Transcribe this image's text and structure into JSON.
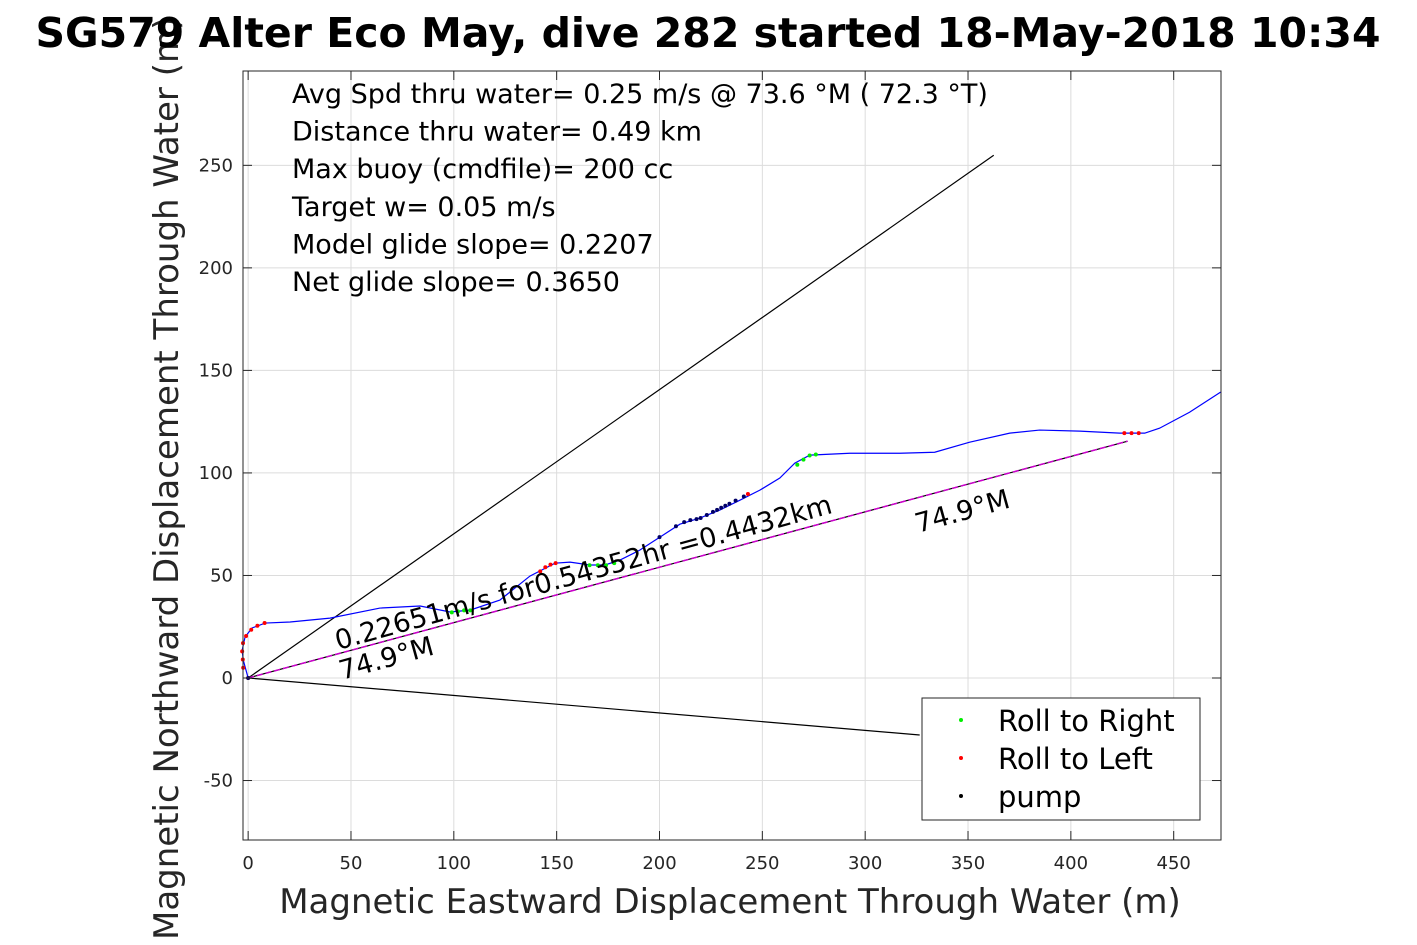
{
  "chart_data": {
    "type": "line",
    "title": "SG579 Alter Eco May, dive 282 started 18-May-2018 10:34",
    "xlabel": "Magnetic Eastward Displacement Through Water (m)",
    "ylabel": "Magnetic Northward Displacement Through Water (m)",
    "xlim": [
      -2.5,
      473
    ],
    "ylim": [
      -79,
      296
    ],
    "xticks": [
      0,
      50,
      100,
      150,
      200,
      250,
      300,
      350,
      400,
      450
    ],
    "yticks": [
      -50,
      0,
      50,
      100,
      150,
      200,
      250
    ],
    "grid": true,
    "info_lines": [
      "Avg Spd thru water=  0.25 m/s @  73.6 °M ( 72.3 °T)",
      "Distance thru water=  0.49 km",
      "Max buoy (cmdfile)= 200 cc",
      "Target w= 0.05 m/s",
      "Model glide slope= 0.2207",
      "Net glide slope= 0.3650"
    ],
    "annotations": {
      "speed_text": "0.22651m/s for0.54352hr =0.4432km",
      "heading_start": "74.9°M",
      "heading_end": "74.9°M"
    },
    "track": {
      "color": "#0000ff",
      "x": [
        0,
        -2.4,
        -2.9,
        -1.5,
        1.9,
        8.3,
        20.4,
        39.8,
        64.1,
        83.6,
        98.2,
        107.9,
        122.4,
        137,
        149.2,
        156.5,
        166.2,
        173.5,
        180.8,
        190.5,
        200.2,
        209.9,
        219.6,
        229.3,
        239.1,
        248.8,
        258.5,
        265.8,
        273.1,
        292.5,
        316.8,
        333.8,
        350.8,
        370.3,
        384.8,
        404.3,
        423.7,
        435.9,
        443.1,
        457.7,
        472.8
      ],
      "y": [
        0,
        8.8,
        13.6,
        20,
        24.4,
        26.8,
        27.3,
        29.2,
        34.1,
        35.1,
        32.2,
        33.1,
        38,
        49.7,
        56,
        56.5,
        55.1,
        55.1,
        57.5,
        62.4,
        68.7,
        75,
        78,
        81.9,
        86.7,
        91.6,
        97.5,
        104.8,
        108.7,
        109.6,
        109.6,
        110.1,
        115,
        119.4,
        120.9,
        120.4,
        119.4,
        119.4,
        121.8,
        129.6,
        139.4
      ]
    },
    "lines": [
      {
        "name": "glide-envelope-upper",
        "color": "#000000",
        "x": [
          0,
          362.5
        ],
        "y": [
          0,
          254.9
        ]
      },
      {
        "name": "glide-envelope-lower",
        "color": "#000000",
        "x": [
          0,
          326.5
        ],
        "y": [
          0,
          -27.8
        ]
      },
      {
        "name": "net-heading-line",
        "color": "#000000",
        "x": [
          0,
          427.6
        ],
        "y": [
          0,
          115.5
        ]
      },
      {
        "name": "net-heading-magenta",
        "color": "#cc00cc",
        "x": [
          0,
          427.6
        ],
        "y": [
          0,
          115.5
        ]
      }
    ],
    "series": [
      {
        "name": "Roll to Right",
        "color": "#00ee00",
        "points": [
          [
            99,
            32
          ],
          [
            102,
            32.5
          ],
          [
            105,
            33
          ],
          [
            108,
            33
          ],
          [
            166,
            55
          ],
          [
            170,
            55
          ],
          [
            174,
            55
          ],
          [
            178,
            56
          ],
          [
            267,
            104
          ],
          [
            270,
            106.5
          ],
          [
            273,
            108.5
          ],
          [
            276,
            109
          ]
        ]
      },
      {
        "name": "Roll to Left",
        "color": "#ff0000",
        "points": [
          [
            -2.4,
            5
          ],
          [
            -2.6,
            9
          ],
          [
            -2.9,
            13
          ],
          [
            -2.5,
            17
          ],
          [
            -1,
            20.5
          ],
          [
            1.5,
            23.5
          ],
          [
            4.5,
            25.5
          ],
          [
            8,
            26.8
          ],
          [
            142,
            52
          ],
          [
            144.5,
            54
          ],
          [
            147,
            55.3
          ],
          [
            149.5,
            56
          ],
          [
            243,
            89.7
          ],
          [
            426,
            119.4
          ],
          [
            429.5,
            119.4
          ],
          [
            433,
            119.4
          ],
          [
            0,
            0
          ]
        ]
      },
      {
        "name": "pump",
        "color": "#000000",
        "points": [
          [
            0,
            0
          ],
          [
            200,
            68.7
          ],
          [
            208,
            74
          ],
          [
            212,
            76
          ],
          [
            215,
            77
          ],
          [
            218,
            77.5
          ],
          [
            220,
            78
          ],
          [
            223,
            79.5
          ],
          [
            226,
            81
          ],
          [
            228,
            82
          ],
          [
            230,
            83
          ],
          [
            232,
            84
          ],
          [
            234,
            85
          ],
          [
            237,
            86.5
          ],
          [
            241,
            88.5
          ]
        ]
      }
    ],
    "legend": {
      "placement": "bottom-right",
      "entries": [
        "Roll to Right",
        "Roll to Left",
        "pump"
      ]
    }
  }
}
